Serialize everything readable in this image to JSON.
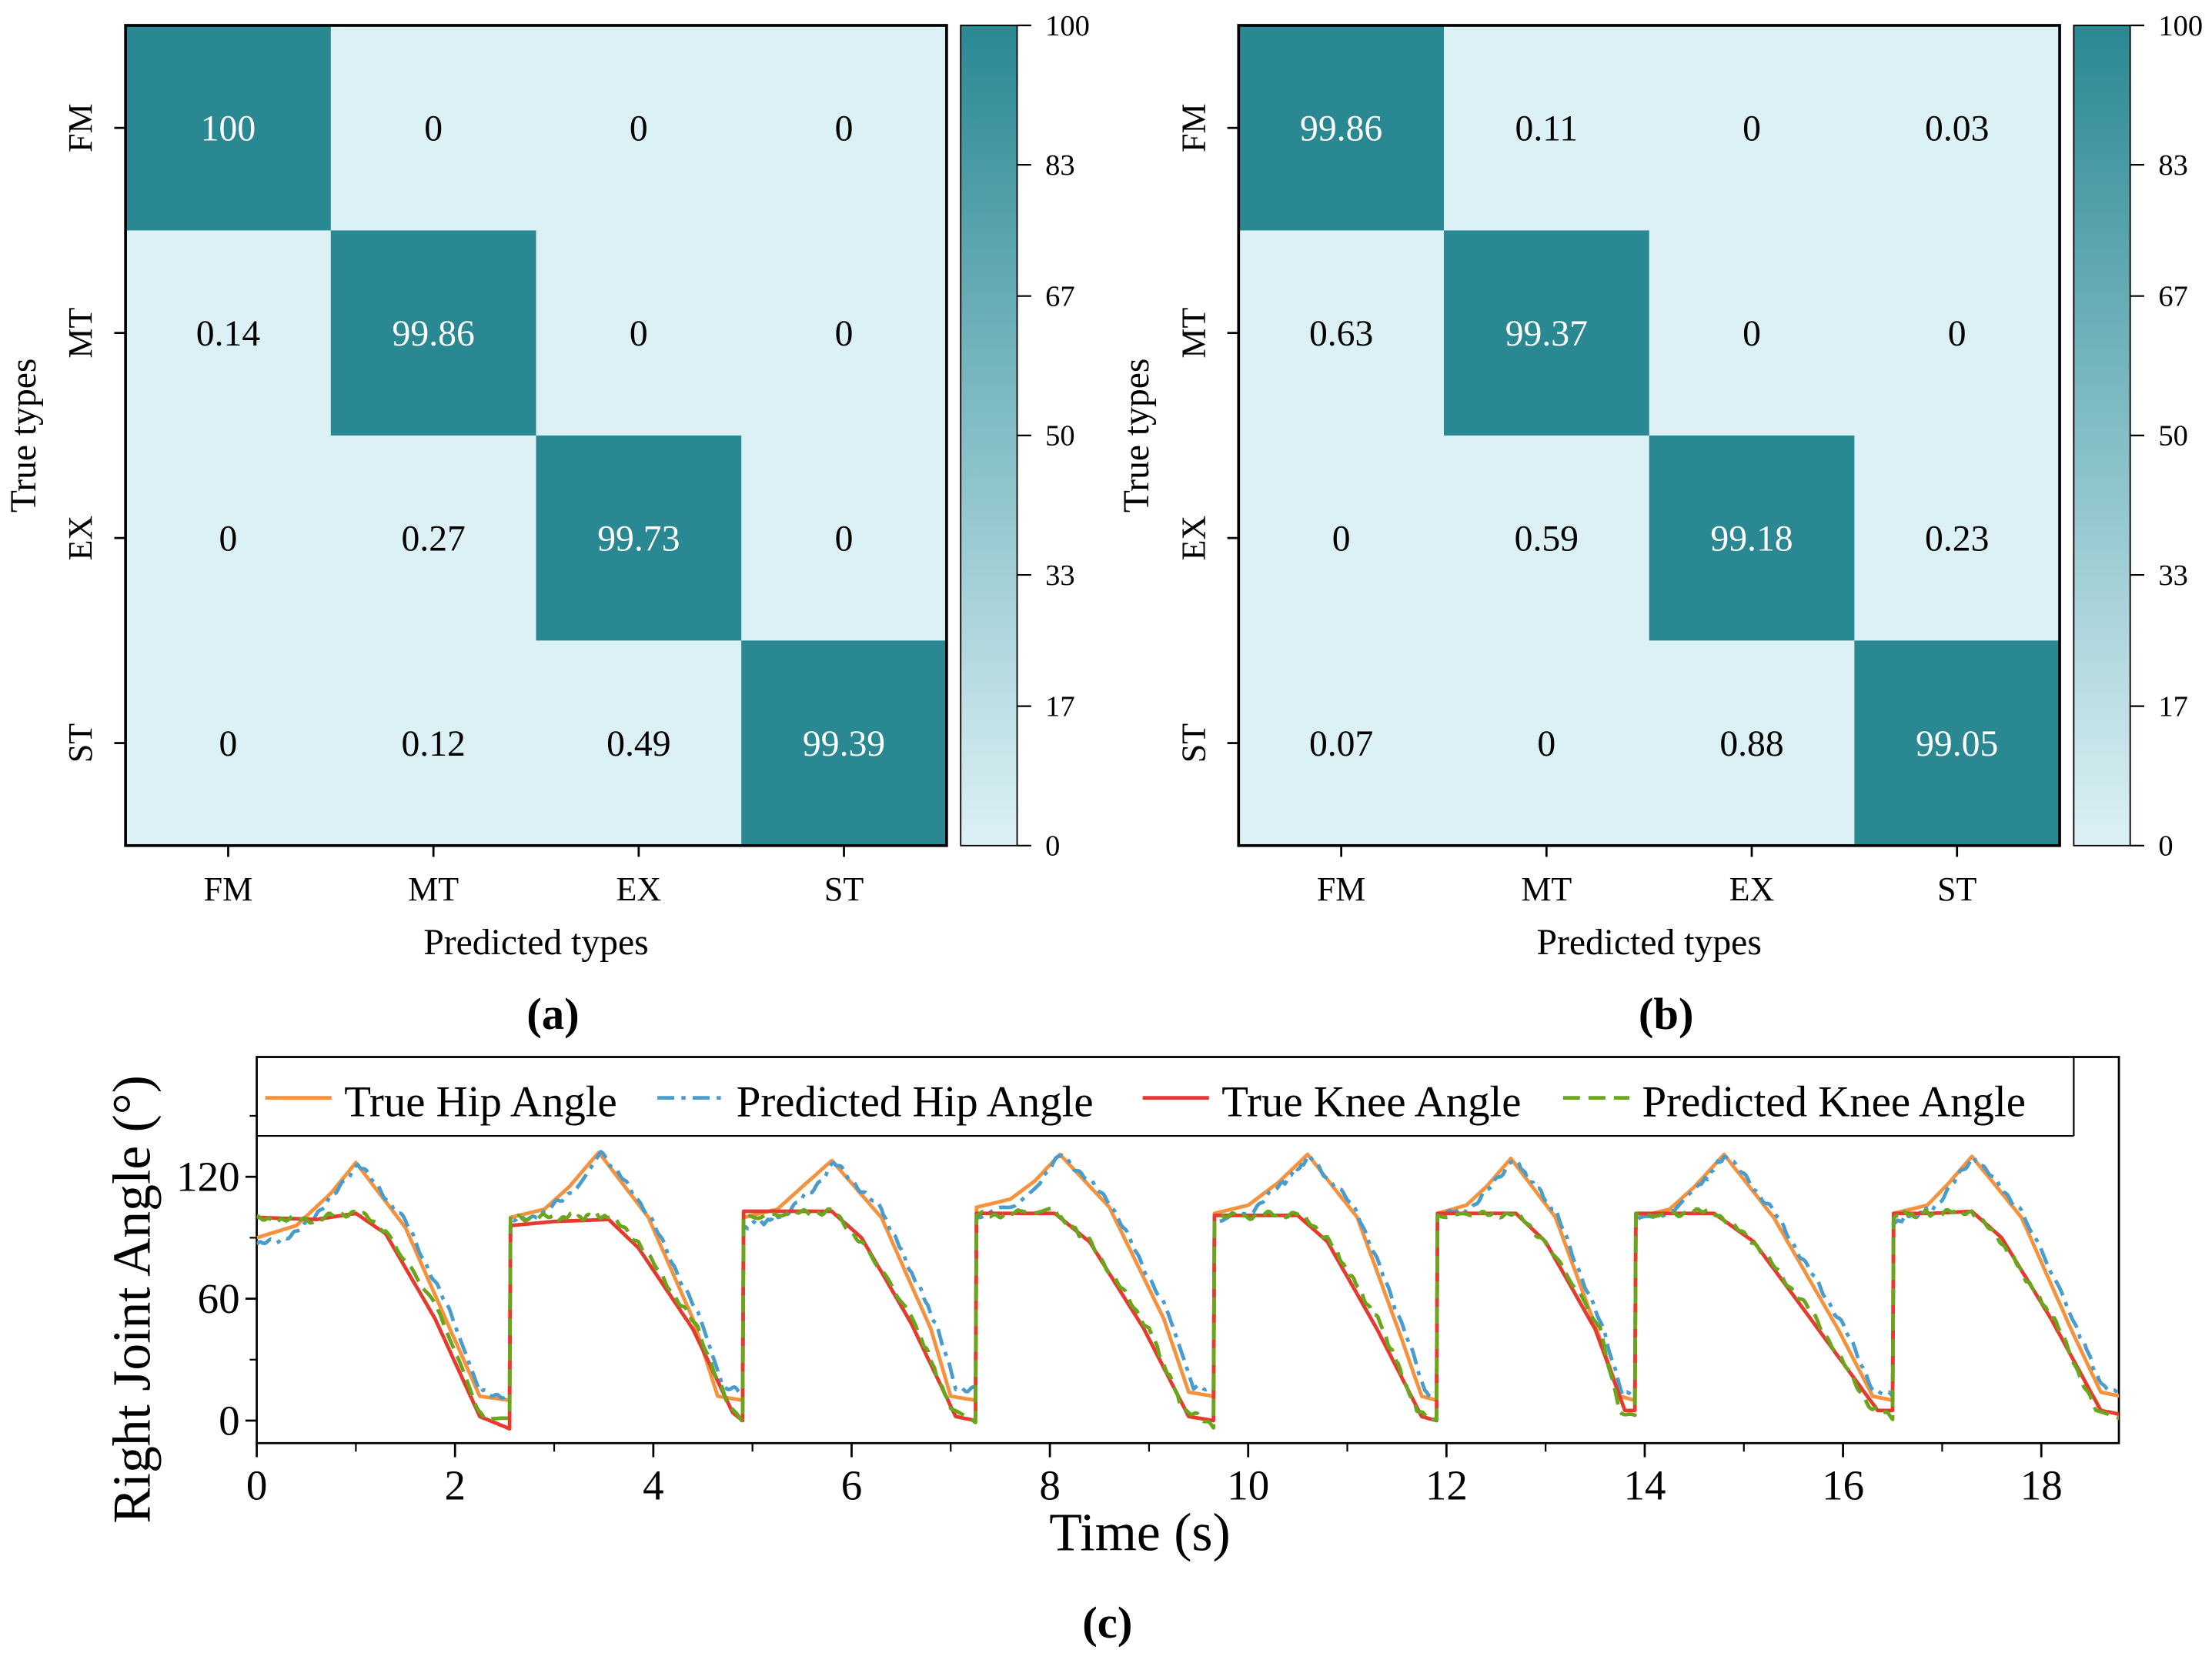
{
  "colors": {
    "dark": "#2a8893",
    "light": "#dcf1f5",
    "true_hip": "#f5923e",
    "pred_hip": "#4a9ccc",
    "true_knee": "#e63a2e",
    "pred_knee": "#6aa51e"
  },
  "chart_data": [
    {
      "type": "heatmap",
      "panel_label": "(a)",
      "xlabel": "Predicted types",
      "ylabel": "True types",
      "x_categories": [
        "FM",
        "MT",
        "EX",
        "ST"
      ],
      "y_categories": [
        "FM",
        "MT",
        "EX",
        "ST"
      ],
      "values": [
        [
          100,
          0,
          0,
          0
        ],
        [
          0.14,
          99.86,
          0,
          0
        ],
        [
          0,
          0.27,
          99.73,
          0
        ],
        [
          0,
          0.12,
          0.49,
          99.39
        ]
      ],
      "colorbar": {
        "range": [
          0,
          100
        ],
        "ticks": [
          0,
          17,
          33,
          50,
          67,
          83,
          100
        ]
      }
    },
    {
      "type": "heatmap",
      "panel_label": "(b)",
      "xlabel": "Predicted types",
      "ylabel": "True types",
      "x_categories": [
        "FM",
        "MT",
        "EX",
        "ST"
      ],
      "y_categories": [
        "FM",
        "MT",
        "EX",
        "ST"
      ],
      "values": [
        [
          99.86,
          0.11,
          0,
          0.03
        ],
        [
          0.63,
          99.37,
          0,
          0
        ],
        [
          0,
          0.59,
          99.18,
          0.23
        ],
        [
          0.07,
          0,
          0.88,
          99.05
        ]
      ],
      "colorbar": {
        "range": [
          0,
          100
        ],
        "ticks": [
          0,
          17,
          33,
          50,
          67,
          83,
          100
        ]
      }
    },
    {
      "type": "line",
      "panel_label": "(c)",
      "xlabel": "Time (s)",
      "ylabel": "Right Joint Angle (°)",
      "xlim": [
        0,
        18.8
      ],
      "ylim": [
        -12,
        160
      ],
      "xticks": [
        0,
        2,
        4,
        6,
        8,
        10,
        12,
        14,
        16,
        18
      ],
      "yticks": [
        0,
        60,
        120
      ],
      "legend_position": "top",
      "series": [
        {
          "name": "True Hip Angle",
          "color_key": "true_hip",
          "style": "solid",
          "points": [
            [
              0,
              90
            ],
            [
              0.4,
              96
            ],
            [
              0.75,
              112
            ],
            [
              1.0,
              127
            ],
            [
              1.5,
              95
            ],
            [
              1.95,
              45
            ],
            [
              2.25,
              12
            ],
            [
              2.55,
              10
            ],
            [
              2.56,
              100
            ],
            [
              2.9,
              104
            ],
            [
              3.15,
              115
            ],
            [
              3.45,
              132
            ],
            [
              3.95,
              100
            ],
            [
              4.4,
              50
            ],
            [
              4.65,
              12
            ],
            [
              4.9,
              10
            ],
            [
              4.91,
              100
            ],
            [
              5.25,
              104
            ],
            [
              5.5,
              115
            ],
            [
              5.8,
              128
            ],
            [
              6.3,
              100
            ],
            [
              6.8,
              45
            ],
            [
              7.0,
              12
            ],
            [
              7.25,
              10
            ],
            [
              7.26,
              105
            ],
            [
              7.6,
              109
            ],
            [
              7.85,
              118
            ],
            [
              8.1,
              131
            ],
            [
              8.6,
              105
            ],
            [
              9.15,
              50
            ],
            [
              9.4,
              14
            ],
            [
              9.65,
              12
            ],
            [
              9.66,
              102
            ],
            [
              10.0,
              106
            ],
            [
              10.3,
              117
            ],
            [
              10.6,
              131
            ],
            [
              11.1,
              100
            ],
            [
              11.55,
              40
            ],
            [
              11.75,
              12
            ],
            [
              11.9,
              10
            ],
            [
              11.91,
              102
            ],
            [
              12.2,
              106
            ],
            [
              12.4,
              115
            ],
            [
              12.65,
              129
            ],
            [
              13.1,
              100
            ],
            [
              13.55,
              40
            ],
            [
              13.75,
              12
            ],
            [
              13.9,
              10
            ],
            [
              13.91,
              100
            ],
            [
              14.25,
              104
            ],
            [
              14.5,
              115
            ],
            [
              14.8,
              131
            ],
            [
              15.3,
              100
            ],
            [
              15.95,
              45
            ],
            [
              16.3,
              12
            ],
            [
              16.5,
              10
            ],
            [
              16.51,
              102
            ],
            [
              16.85,
              106
            ],
            [
              17.05,
              116
            ],
            [
              17.3,
              130
            ],
            [
              17.8,
              100
            ],
            [
              18.3,
              45
            ],
            [
              18.6,
              14
            ],
            [
              18.8,
              12
            ]
          ]
        },
        {
          "name": "Predicted Hip Angle",
          "color_key": "pred_hip",
          "style": "dashdot",
          "points": [
            [
              0,
              86
            ],
            [
              0.4,
              92
            ],
            [
              0.8,
              112
            ],
            [
              1.02,
              127
            ],
            [
              1.5,
              98
            ],
            [
              2.0,
              48
            ],
            [
              2.25,
              14
            ],
            [
              2.55,
              12
            ],
            [
              2.56,
              98
            ],
            [
              2.9,
              102
            ],
            [
              3.2,
              114
            ],
            [
              3.47,
              133
            ],
            [
              3.95,
              102
            ],
            [
              4.45,
              52
            ],
            [
              4.7,
              16
            ],
            [
              4.9,
              14
            ],
            [
              4.91,
              95
            ],
            [
              5.3,
              101
            ],
            [
              5.6,
              113
            ],
            [
              5.82,
              127
            ],
            [
              6.3,
              104
            ],
            [
              6.85,
              48
            ],
            [
              7.05,
              16
            ],
            [
              7.25,
              16
            ],
            [
              7.26,
              100
            ],
            [
              7.65,
              106
            ],
            [
              7.9,
              118
            ],
            [
              8.12,
              131
            ],
            [
              8.6,
              108
            ],
            [
              9.2,
              52
            ],
            [
              9.45,
              16
            ],
            [
              9.65,
              15
            ],
            [
              9.66,
              99
            ],
            [
              10.05,
              104
            ],
            [
              10.35,
              117
            ],
            [
              10.62,
              130
            ],
            [
              11.1,
              103
            ],
            [
              11.6,
              42
            ],
            [
              11.78,
              14
            ],
            [
              11.9,
              12
            ],
            [
              11.91,
              100
            ],
            [
              12.25,
              105
            ],
            [
              12.45,
              115
            ],
            [
              12.67,
              129
            ],
            [
              13.1,
              103
            ],
            [
              13.6,
              42
            ],
            [
              13.78,
              13
            ],
            [
              13.9,
              12
            ],
            [
              13.91,
              98
            ],
            [
              14.3,
              102
            ],
            [
              14.55,
              115
            ],
            [
              14.82,
              131
            ],
            [
              15.3,
              103
            ],
            [
              16.0,
              47
            ],
            [
              16.32,
              14
            ],
            [
              16.5,
              12
            ],
            [
              16.51,
              98
            ],
            [
              16.9,
              104
            ],
            [
              17.1,
              116
            ],
            [
              17.32,
              130
            ],
            [
              17.8,
              103
            ],
            [
              18.35,
              47
            ],
            [
              18.62,
              16
            ],
            [
              18.8,
              14
            ]
          ]
        },
        {
          "name": "True Knee Angle",
          "color_key": "true_knee",
          "style": "solid",
          "points": [
            [
              0,
              100
            ],
            [
              0.6,
              99
            ],
            [
              1.0,
              102
            ],
            [
              1.3,
              92
            ],
            [
              1.8,
              50
            ],
            [
              2.25,
              2
            ],
            [
              2.55,
              -4
            ],
            [
              2.56,
              96
            ],
            [
              3.0,
              98
            ],
            [
              3.55,
              99
            ],
            [
              3.85,
              85
            ],
            [
              4.4,
              45
            ],
            [
              4.8,
              4
            ],
            [
              4.9,
              0
            ],
            [
              4.91,
              103
            ],
            [
              5.4,
              103
            ],
            [
              5.8,
              103
            ],
            [
              6.1,
              90
            ],
            [
              6.6,
              48
            ],
            [
              7.05,
              2
            ],
            [
              7.25,
              0
            ],
            [
              7.26,
              102
            ],
            [
              7.7,
              102
            ],
            [
              8.05,
              102
            ],
            [
              8.4,
              88
            ],
            [
              8.95,
              45
            ],
            [
              9.4,
              2
            ],
            [
              9.65,
              0
            ],
            [
              9.66,
              101
            ],
            [
              10.1,
              101
            ],
            [
              10.5,
              101
            ],
            [
              10.8,
              88
            ],
            [
              11.3,
              45
            ],
            [
              11.75,
              2
            ],
            [
              11.9,
              0
            ],
            [
              11.91,
              102
            ],
            [
              12.3,
              102
            ],
            [
              12.7,
              102
            ],
            [
              13.0,
              88
            ],
            [
              13.5,
              45
            ],
            [
              13.8,
              5
            ],
            [
              13.9,
              5
            ],
            [
              13.91,
              102
            ],
            [
              14.3,
              102
            ],
            [
              14.7,
              102
            ],
            [
              15.1,
              88
            ],
            [
              15.6,
              55
            ],
            [
              16.35,
              5
            ],
            [
              16.5,
              5
            ],
            [
              16.51,
              102
            ],
            [
              16.9,
              102
            ],
            [
              17.3,
              103
            ],
            [
              17.6,
              90
            ],
            [
              18.1,
              50
            ],
            [
              18.6,
              5
            ],
            [
              18.8,
              3
            ]
          ]
        },
        {
          "name": "Predicted Knee Angle",
          "color_key": "pred_knee",
          "style": "dashed",
          "points": [
            [
              0,
              99
            ],
            [
              0.6,
              99
            ],
            [
              1.0,
              103
            ],
            [
              1.3,
              94
            ],
            [
              1.85,
              52
            ],
            [
              2.2,
              8
            ],
            [
              2.3,
              0
            ],
            [
              2.55,
              0
            ],
            [
              2.56,
              100
            ],
            [
              3.0,
              100
            ],
            [
              3.55,
              101
            ],
            [
              3.85,
              88
            ],
            [
              4.45,
              45
            ],
            [
              4.75,
              8
            ],
            [
              4.9,
              0
            ],
            [
              4.91,
              101
            ],
            [
              5.4,
              102
            ],
            [
              5.8,
              103
            ],
            [
              6.1,
              88
            ],
            [
              6.65,
              47
            ],
            [
              7.0,
              6
            ],
            [
              7.25,
              -1
            ],
            [
              7.26,
              101
            ],
            [
              7.7,
              102
            ],
            [
              8.05,
              103
            ],
            [
              8.4,
              88
            ],
            [
              9.0,
              45
            ],
            [
              9.35,
              5
            ],
            [
              9.65,
              -2
            ],
            [
              9.66,
              100
            ],
            [
              10.1,
              101
            ],
            [
              10.5,
              102
            ],
            [
              10.8,
              90
            ],
            [
              11.35,
              46
            ],
            [
              11.7,
              5
            ],
            [
              11.9,
              0
            ],
            [
              11.91,
              101
            ],
            [
              12.3,
              101
            ],
            [
              12.7,
              102
            ],
            [
              13.0,
              88
            ],
            [
              13.55,
              45
            ],
            [
              13.75,
              5
            ],
            [
              13.9,
              2
            ],
            [
              13.91,
              101
            ],
            [
              14.3,
              102
            ],
            [
              14.7,
              103
            ],
            [
              15.1,
              88
            ],
            [
              15.7,
              52
            ],
            [
              16.3,
              5
            ],
            [
              16.5,
              2
            ],
            [
              16.51,
              101
            ],
            [
              16.9,
              102
            ],
            [
              17.3,
              103
            ],
            [
              17.6,
              88
            ],
            [
              18.15,
              48
            ],
            [
              18.55,
              5
            ],
            [
              18.8,
              2
            ]
          ]
        }
      ]
    }
  ]
}
